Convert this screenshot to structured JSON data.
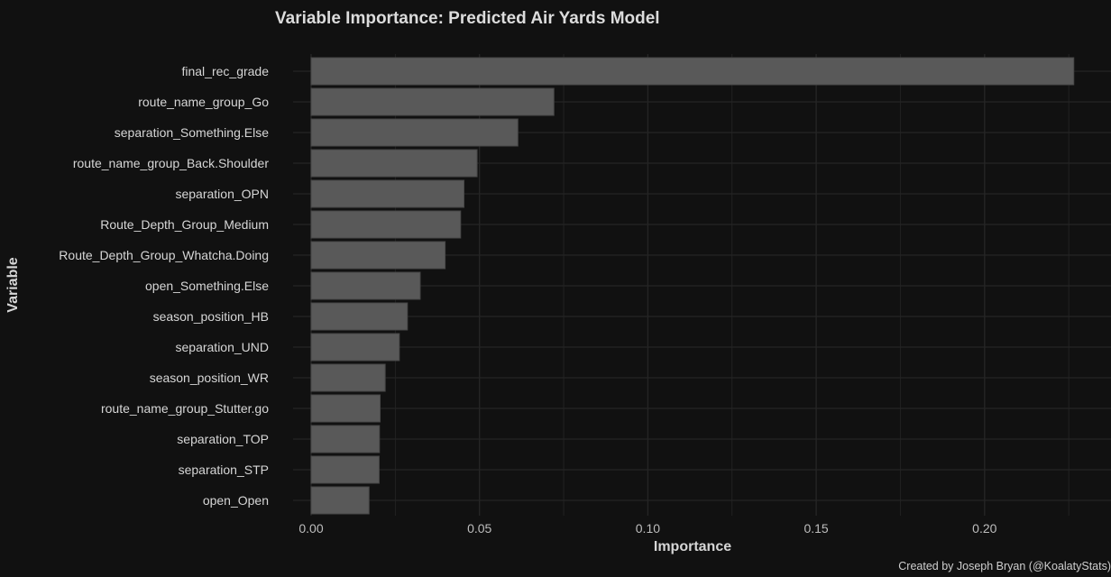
{
  "chart_data": {
    "type": "bar",
    "orientation": "horizontal",
    "title": "Variable Importance: Predicted Air Yards Model",
    "xlabel": "Importance",
    "ylabel": "Variable",
    "caption": "Created by Joseph Bryan (@KoalatyStats)",
    "categories": [
      "final_rec_grade",
      "route_name_group_Go",
      "separation_Something.Else",
      "route_name_group_Back.Shoulder",
      "separation_OPN",
      "Route_Depth_Group_Medium",
      "Route_Depth_Group_Whatcha.Doing",
      "open_Something.Else",
      "season_position_HB",
      "separation_UND",
      "season_position_WR",
      "route_name_group_Stutter.go",
      "separation_TOP",
      "separation_STP",
      "open_Open"
    ],
    "values": [
      0.2265,
      0.0721,
      0.0614,
      0.0493,
      0.0454,
      0.0444,
      0.0398,
      0.0324,
      0.0286,
      0.0262,
      0.022,
      0.0205,
      0.0203,
      0.0202,
      0.0172
    ],
    "xticks": [
      "0.00",
      "0.05",
      "0.10",
      "0.15",
      "0.20"
    ],
    "xtick_values": [
      0,
      0.05,
      0.1,
      0.15,
      0.2
    ],
    "xlim": [
      0,
      0.2375
    ],
    "grid": true,
    "colors": {
      "background": "#111111",
      "bar": "#595959",
      "bar_edge": "#474747",
      "grid": "#252525"
    }
  }
}
